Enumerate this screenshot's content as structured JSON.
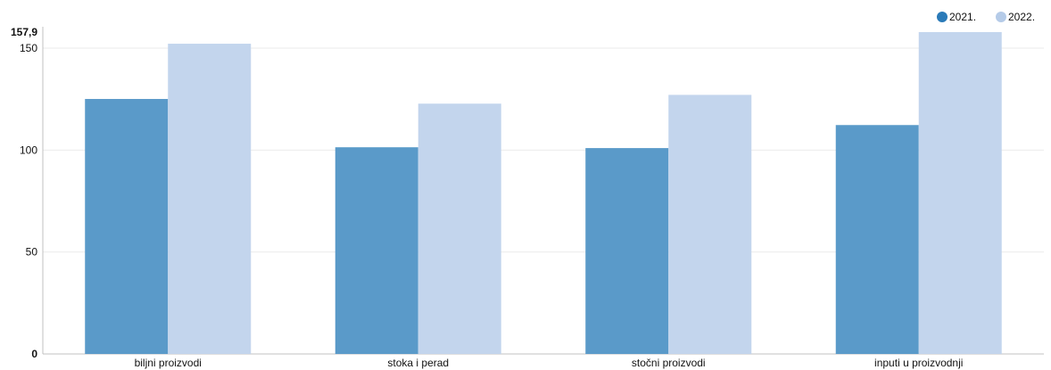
{
  "chart_data": {
    "type": "bar",
    "title": "",
    "xlabel": "",
    "ylabel": "",
    "categories": [
      "biljni proizvodi",
      "stoka i perad",
      "stočni proizvodi",
      "inputi u proizvodnji"
    ],
    "series": [
      {
        "name": "2021.",
        "values": [
          125.1,
          101.4,
          101.0,
          112.3
        ],
        "color": "#5a9ac9"
      },
      {
        "name": "2022.",
        "values": [
          152.2,
          122.8,
          127.1,
          157.9
        ],
        "color": "#c3d5ed"
      }
    ],
    "ylim": [
      0,
      157.9
    ],
    "yticks": [
      {
        "value": 0,
        "label": "0",
        "bold": true
      },
      {
        "value": 50,
        "label": "50",
        "bold": false
      },
      {
        "value": 100,
        "label": "100",
        "bold": false
      },
      {
        "value": 150,
        "label": "150",
        "bold": false
      },
      {
        "value": 157.9,
        "label": "157,9",
        "bold": true
      }
    ],
    "grid": true,
    "legend_position": "top-right",
    "legend_marker_colors": [
      "#2a7ab8",
      "#b5cbe8"
    ],
    "gridline_color": "#ebebeb",
    "axis_color": "#c0c0c0"
  }
}
